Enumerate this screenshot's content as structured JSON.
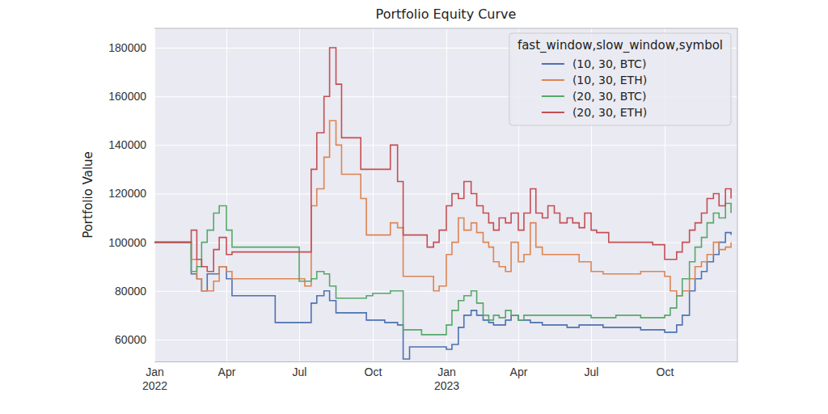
{
  "chart_data": {
    "type": "line",
    "title": "Portfolio Equity Curve",
    "y_label": "Portfolio Value",
    "legend_title": "fast_window,slow_window,symbol",
    "legend": "upper right",
    "grid": true,
    "x": [
      "2022-01-01",
      "2022-01-08",
      "2022-01-16",
      "2022-01-23",
      "2022-02-01",
      "2022-02-08",
      "2022-02-16",
      "2022-02-23",
      "2022-03-01",
      "2022-03-08",
      "2022-03-16",
      "2022-03-23",
      "2022-04-01",
      "2022-04-08",
      "2022-04-16",
      "2022-04-23",
      "2022-05-01",
      "2022-05-08",
      "2022-05-16",
      "2022-05-23",
      "2022-06-01",
      "2022-06-08",
      "2022-06-16",
      "2022-06-23",
      "2022-07-01",
      "2022-07-08",
      "2022-07-16",
      "2022-07-23",
      "2022-08-01",
      "2022-08-08",
      "2022-08-16",
      "2022-08-23",
      "2022-09-01",
      "2022-09-08",
      "2022-09-16",
      "2022-09-23",
      "2022-10-01",
      "2022-10-08",
      "2022-10-16",
      "2022-10-23",
      "2022-11-01",
      "2022-11-08",
      "2022-11-16",
      "2022-11-23",
      "2022-12-01",
      "2022-12-08",
      "2022-12-16",
      "2022-12-23",
      "2023-01-01",
      "2023-01-08",
      "2023-01-16",
      "2023-01-23",
      "2023-02-01",
      "2023-02-08",
      "2023-02-16",
      "2023-02-23",
      "2023-03-01",
      "2023-03-08",
      "2023-03-16",
      "2023-03-23",
      "2023-04-01",
      "2023-04-08",
      "2023-04-16",
      "2023-04-23",
      "2023-05-01",
      "2023-05-08",
      "2023-05-16",
      "2023-05-23",
      "2023-06-01",
      "2023-06-08",
      "2023-06-16",
      "2023-06-23",
      "2023-07-01",
      "2023-07-08",
      "2023-07-16",
      "2023-07-23",
      "2023-08-01",
      "2023-08-08",
      "2023-08-16",
      "2023-08-23",
      "2023-09-01",
      "2023-09-08",
      "2023-09-16",
      "2023-09-23",
      "2023-10-01",
      "2023-10-08",
      "2023-10-16",
      "2023-10-23",
      "2023-11-01",
      "2023-11-08",
      "2023-11-16",
      "2023-11-23",
      "2023-12-01",
      "2023-12-08",
      "2023-12-16",
      "2023-12-23"
    ],
    "xlim": [
      "2022-01-01",
      "2023-12-31"
    ],
    "xticks": [
      {
        "value": "2022-01-01",
        "label": "Jan\n2022"
      },
      {
        "value": "2022-04-01",
        "label": "Apr"
      },
      {
        "value": "2022-07-01",
        "label": "Jul"
      },
      {
        "value": "2022-10-01",
        "label": "Oct"
      },
      {
        "value": "2023-01-01",
        "label": "Jan\n2023"
      },
      {
        "value": "2023-04-01",
        "label": "Apr"
      },
      {
        "value": "2023-07-01",
        "label": "Jul"
      },
      {
        "value": "2023-10-01",
        "label": "Oct"
      }
    ],
    "ylim": [
      51000,
      188000
    ],
    "yticks": [
      60000,
      80000,
      100000,
      120000,
      140000,
      160000,
      180000
    ],
    "series": [
      {
        "name": "(10, 30, BTC)",
        "color": "#4c72b0",
        "values": [
          100000,
          100000,
          100000,
          100000,
          100000,
          100000,
          87000,
          85000,
          80000,
          87000,
          87000,
          90000,
          85000,
          78000,
          78000,
          78000,
          78000,
          78000,
          78000,
          78000,
          67000,
          67000,
          67000,
          67000,
          67000,
          67000,
          75000,
          78000,
          80000,
          76000,
          71000,
          71000,
          71000,
          71000,
          71000,
          68000,
          68000,
          68000,
          67000,
          67000,
          66000,
          52000,
          57000,
          57000,
          57000,
          57000,
          57000,
          57000,
          56000,
          58000,
          65000,
          70000,
          72000,
          70000,
          68000,
          67000,
          66000,
          66000,
          68000,
          70000,
          68000,
          68000,
          67000,
          67000,
          66000,
          66000,
          66000,
          66000,
          65000,
          65000,
          66000,
          66000,
          66000,
          66000,
          65000,
          65000,
          65000,
          65000,
          65000,
          65000,
          64000,
          64000,
          64000,
          64000,
          63000,
          63000,
          66000,
          70000,
          80000,
          85000,
          88000,
          92000,
          95000,
          100000,
          104000,
          103000
        ]
      },
      {
        "name": "(10, 30, ETH)",
        "color": "#dd8452",
        "values": [
          100000,
          100000,
          100000,
          100000,
          100000,
          100000,
          93000,
          85000,
          80000,
          80000,
          84000,
          90000,
          88000,
          85000,
          85000,
          85000,
          85000,
          85000,
          85000,
          85000,
          85000,
          85000,
          85000,
          85000,
          85000,
          82000,
          115000,
          122000,
          135000,
          150000,
          140000,
          128000,
          128000,
          128000,
          118000,
          103000,
          103000,
          103000,
          103000,
          108000,
          106000,
          86000,
          86000,
          86000,
          86000,
          86000,
          80000,
          82000,
          95000,
          100000,
          110000,
          105000,
          108000,
          104000,
          100000,
          98000,
          92000,
          90000,
          88000,
          100000,
          92000,
          95000,
          108000,
          98000,
          95000,
          95000,
          95000,
          95000,
          95000,
          95000,
          92000,
          92000,
          88000,
          88000,
          87000,
          87000,
          87000,
          87000,
          87000,
          87000,
          88000,
          88000,
          88000,
          88000,
          86000,
          80000,
          78000,
          80000,
          85000,
          90000,
          92000,
          95000,
          100000,
          97000,
          98000,
          100000
        ]
      },
      {
        "name": "(20, 30, BTC)",
        "color": "#55a868",
        "values": [
          100000,
          100000,
          100000,
          100000,
          100000,
          100000,
          88000,
          90000,
          100000,
          105000,
          112000,
          115000,
          105000,
          98000,
          98000,
          98000,
          98000,
          98000,
          98000,
          98000,
          98000,
          98000,
          98000,
          98000,
          84000,
          84000,
          85000,
          88000,
          87000,
          82000,
          77000,
          77000,
          77000,
          77000,
          77000,
          78000,
          79000,
          79000,
          79000,
          80000,
          80000,
          64000,
          64000,
          64000,
          62000,
          62000,
          62000,
          62000,
          66000,
          72000,
          76000,
          78000,
          80000,
          75000,
          70000,
          68000,
          70000,
          69000,
          72000,
          70000,
          68000,
          70000,
          70000,
          70000,
          70000,
          70000,
          70000,
          70000,
          70000,
          70000,
          70000,
          70000,
          69000,
          69000,
          69000,
          69000,
          70000,
          70000,
          70000,
          70000,
          69000,
          69000,
          69000,
          69000,
          70000,
          73000,
          78000,
          85000,
          92000,
          98000,
          102000,
          108000,
          112000,
          110000,
          116000,
          112000
        ]
      },
      {
        "name": "(20, 30, ETH)",
        "color": "#c44e52",
        "values": [
          100000,
          100000,
          100000,
          100000,
          100000,
          100000,
          105000,
          93000,
          90000,
          88000,
          97000,
          102000,
          95000,
          96000,
          96000,
          96000,
          96000,
          96000,
          96000,
          96000,
          96000,
          96000,
          96000,
          96000,
          96000,
          96000,
          130000,
          145000,
          160000,
          180000,
          165000,
          143000,
          143000,
          143000,
          130000,
          130000,
          130000,
          130000,
          130000,
          140000,
          125000,
          103000,
          103000,
          103000,
          103000,
          98000,
          100000,
          105000,
          115000,
          120000,
          118000,
          125000,
          120000,
          115000,
          112000,
          108000,
          105000,
          110000,
          108000,
          112000,
          105000,
          112000,
          122000,
          112000,
          110000,
          115000,
          112000,
          108000,
          110000,
          108000,
          106000,
          112000,
          105000,
          104000,
          104000,
          100000,
          100000,
          100000,
          100000,
          100000,
          100000,
          100000,
          99000,
          99000,
          93000,
          93000,
          96000,
          100000,
          105000,
          108000,
          112000,
          118000,
          120000,
          115000,
          122000,
          118000
        ]
      }
    ]
  }
}
